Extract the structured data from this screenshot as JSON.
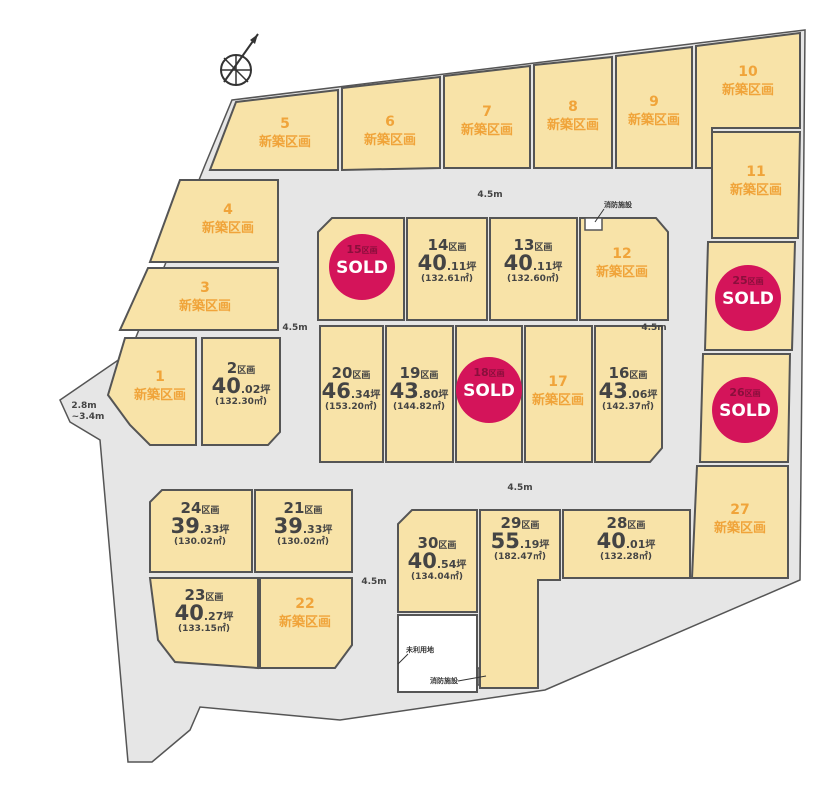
{
  "labels": {
    "kukaku": "区画",
    "new_build": "新築区画",
    "tsubo": "坪",
    "sold": "SOLD",
    "sqm_unit": "㎡"
  },
  "colors": {
    "lot_fill": "#f8e3a8",
    "road": "#e6e6e6",
    "sold_badge": "#d4145a",
    "new_build_text": "#f0a43a",
    "text": "#444444"
  },
  "compass": {
    "icon": "north-arrow-compass-icon"
  },
  "roads": [
    {
      "id": "top",
      "label": "4.5m"
    },
    {
      "id": "left-inner",
      "label": "4.5m"
    },
    {
      "id": "right-inner",
      "label": "4.5m"
    },
    {
      "id": "middle",
      "label": "4.5m"
    },
    {
      "id": "lower",
      "label": "4.5m"
    },
    {
      "id": "west",
      "label": "2.8m",
      "label2": "~3.4m"
    }
  ],
  "notes": [
    {
      "id": "fire-top",
      "label": "消防施設"
    },
    {
      "id": "unused",
      "label": "未利用地"
    },
    {
      "id": "fire-bottom",
      "label": "消防施設"
    }
  ],
  "lots": [
    {
      "id": "1",
      "status": "new"
    },
    {
      "id": "2",
      "status": "available",
      "tsubo_int": "40",
      "tsubo_dec": ".02",
      "sqm": "(132.30㎡)"
    },
    {
      "id": "3",
      "status": "new"
    },
    {
      "id": "4",
      "status": "new"
    },
    {
      "id": "5",
      "status": "new"
    },
    {
      "id": "6",
      "status": "new"
    },
    {
      "id": "7",
      "status": "new"
    },
    {
      "id": "8",
      "status": "new"
    },
    {
      "id": "9",
      "status": "new"
    },
    {
      "id": "10",
      "status": "new"
    },
    {
      "id": "11",
      "status": "new"
    },
    {
      "id": "12",
      "status": "new"
    },
    {
      "id": "13",
      "status": "available",
      "tsubo_int": "40",
      "tsubo_dec": ".11",
      "sqm": "(132.60㎡)"
    },
    {
      "id": "14",
      "status": "available",
      "tsubo_int": "40",
      "tsubo_dec": ".11",
      "sqm": "(132.61㎡)"
    },
    {
      "id": "15",
      "status": "sold"
    },
    {
      "id": "16",
      "status": "available",
      "tsubo_int": "43",
      "tsubo_dec": ".06",
      "sqm": "(142.37㎡)"
    },
    {
      "id": "17",
      "status": "new"
    },
    {
      "id": "18",
      "status": "sold"
    },
    {
      "id": "19",
      "status": "available",
      "tsubo_int": "43",
      "tsubo_dec": ".80",
      "sqm": "(144.82㎡)"
    },
    {
      "id": "20",
      "status": "available",
      "tsubo_int": "46",
      "tsubo_dec": ".34",
      "sqm": "(153.20㎡)"
    },
    {
      "id": "21",
      "status": "available",
      "tsubo_int": "39",
      "tsubo_dec": ".33",
      "sqm": "(130.02㎡)"
    },
    {
      "id": "22",
      "status": "new"
    },
    {
      "id": "23",
      "status": "available",
      "tsubo_int": "40",
      "tsubo_dec": ".27",
      "sqm": "(133.15㎡)"
    },
    {
      "id": "24",
      "status": "available",
      "tsubo_int": "39",
      "tsubo_dec": ".33",
      "sqm": "(130.02㎡)"
    },
    {
      "id": "25",
      "status": "sold"
    },
    {
      "id": "26",
      "status": "sold"
    },
    {
      "id": "27",
      "status": "new"
    },
    {
      "id": "28",
      "status": "available",
      "tsubo_int": "40",
      "tsubo_dec": ".01",
      "sqm": "(132.28㎡)"
    },
    {
      "id": "29",
      "status": "available",
      "tsubo_int": "55",
      "tsubo_dec": ".19",
      "sqm": "(182.47㎡)"
    },
    {
      "id": "30",
      "status": "available",
      "tsubo_int": "40",
      "tsubo_dec": ".54",
      "sqm": "(134.04㎡)"
    }
  ]
}
